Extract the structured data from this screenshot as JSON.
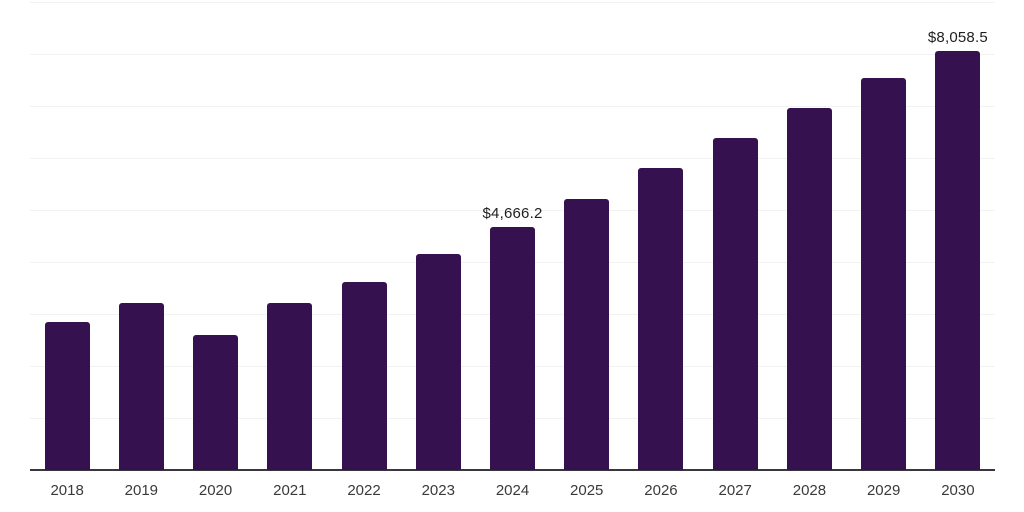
{
  "chart_data": {
    "type": "bar",
    "title": "",
    "xlabel": "",
    "ylabel": "",
    "categories": [
      "2018",
      "2019",
      "2020",
      "2021",
      "2022",
      "2023",
      "2024",
      "2025",
      "2026",
      "2027",
      "2028",
      "2029",
      "2030"
    ],
    "values": [
      2850,
      3210,
      2590,
      3210,
      3620,
      4150,
      4666.2,
      5220,
      5800,
      6380,
      6960,
      7530,
      8058.5
    ],
    "data_labels": {
      "2024": "$4,666.2",
      "2030": "$8,058.5"
    },
    "ylim": [
      0,
      9000
    ],
    "gridline_interval": 1000,
    "grid": true,
    "legend": false,
    "colors": {
      "bar": "#361150",
      "gridline": "#f2f2f2",
      "axis_line": "#37373d",
      "tick_label": "#3a3a3a",
      "data_label": "#1f1f1f",
      "background": "#ffffff"
    }
  }
}
